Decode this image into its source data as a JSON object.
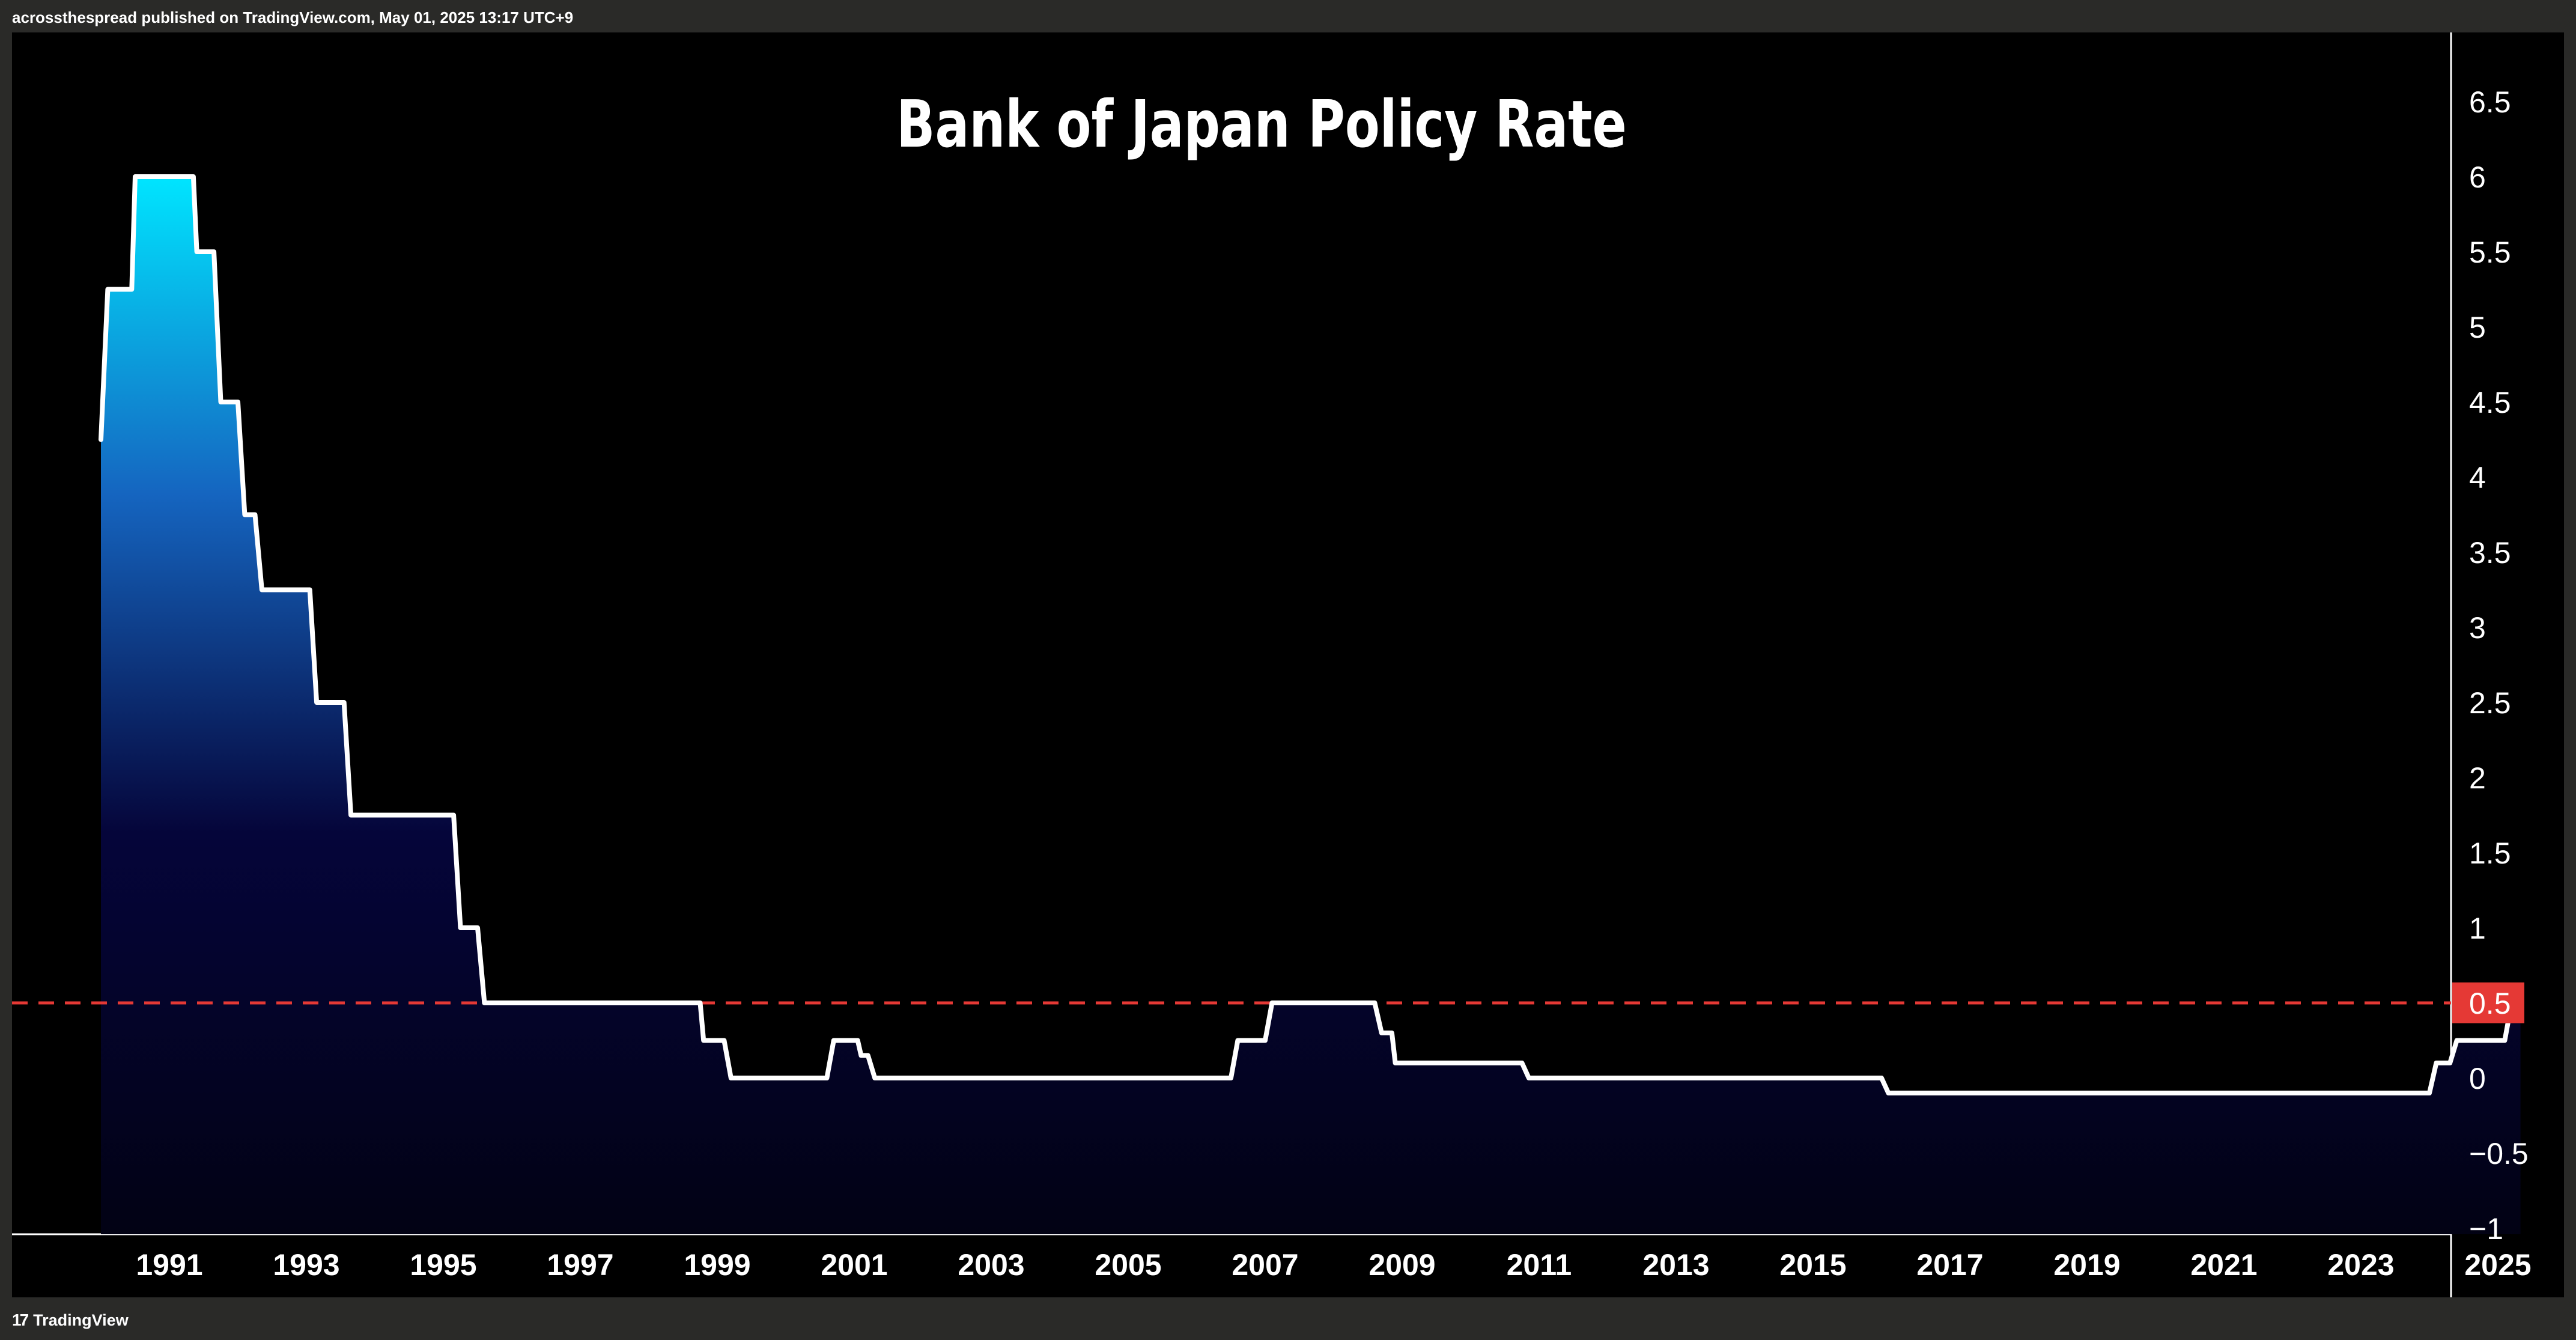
{
  "header": {
    "attribution": "acrossthespread published on TradingView.com, May 01, 2025 13:17 UTC+9"
  },
  "footer": {
    "brand_mark": "17",
    "brand_name": "TradingView"
  },
  "colors": {
    "background": "#000000",
    "line": "#ffffff",
    "marker_line": "#e53935",
    "last_value_badge": "#e53935",
    "fill_top": "#00e5ff",
    "fill_mid": "#1565c0",
    "fill_bottom": "#05053a"
  },
  "chart_data": {
    "type": "area",
    "title": "Bank of Japan Policy Rate",
    "xlabel": "",
    "ylabel": "",
    "xlim": [
      1990.0,
      2026.3
    ],
    "ylim": [
      -1,
      7
    ],
    "grid": false,
    "legend": "none",
    "y_axis_side": "right",
    "x_ticks": [
      "1991",
      "1993",
      "1995",
      "1997",
      "1999",
      "2001",
      "2003",
      "2005",
      "2007",
      "2009",
      "2011",
      "2013",
      "2015",
      "2017",
      "2019",
      "2021",
      "2023",
      "2025"
    ],
    "y_ticks": [
      "6.5",
      "6",
      "5.5",
      "5",
      "4.5",
      "4",
      "3.5",
      "3",
      "2.5",
      "2",
      "1.5",
      "1",
      "0.5",
      "0",
      "−0.5",
      "−1"
    ],
    "reference_line": {
      "value": 0.5,
      "style": "dashed"
    },
    "last_value_label": "0.5",
    "series": [
      {
        "x": [
          1990.0,
          1990.1,
          1990.45,
          1990.5,
          1991.35,
          1991.4,
          1991.65,
          1991.75,
          1992.0,
          1992.1,
          1992.25,
          1992.35,
          1992.5,
          1992.6,
          1993.05,
          1993.15,
          1993.55,
          1993.65,
          1995.15,
          1995.25,
          1995.5,
          1995.6,
          1998.75,
          1998.8,
          1999.1,
          1999.2,
          2000.6,
          2000.7,
          2001.05,
          2001.1,
          2001.2,
          2001.3,
          2006.5,
          2006.6,
          2007.0,
          2007.1,
          2008.6,
          2008.7,
          2008.85,
          2008.9,
          2010.75,
          2010.85,
          2016.0,
          2016.1,
          2024.0,
          2024.1,
          2024.3,
          2024.4,
          2024.7,
          2024.8,
          2025.1,
          2025.2,
          2025.33
        ],
        "y": [
          4.25,
          5.25,
          5.25,
          6.0,
          6.0,
          5.5,
          5.5,
          4.5,
          4.5,
          3.75,
          3.75,
          3.25,
          3.25,
          3.25,
          3.25,
          2.5,
          2.5,
          1.75,
          1.75,
          1.0,
          1.0,
          0.5,
          0.5,
          0.25,
          0.25,
          0.0,
          0.0,
          0.25,
          0.25,
          0.15,
          0.15,
          0.0,
          0.0,
          0.25,
          0.25,
          0.5,
          0.5,
          0.3,
          0.3,
          0.1,
          0.1,
          0.0,
          0.0,
          -0.1,
          -0.1,
          0.1,
          0.1,
          0.25,
          0.25,
          0.25,
          0.25,
          0.5,
          0.5
        ]
      }
    ]
  }
}
